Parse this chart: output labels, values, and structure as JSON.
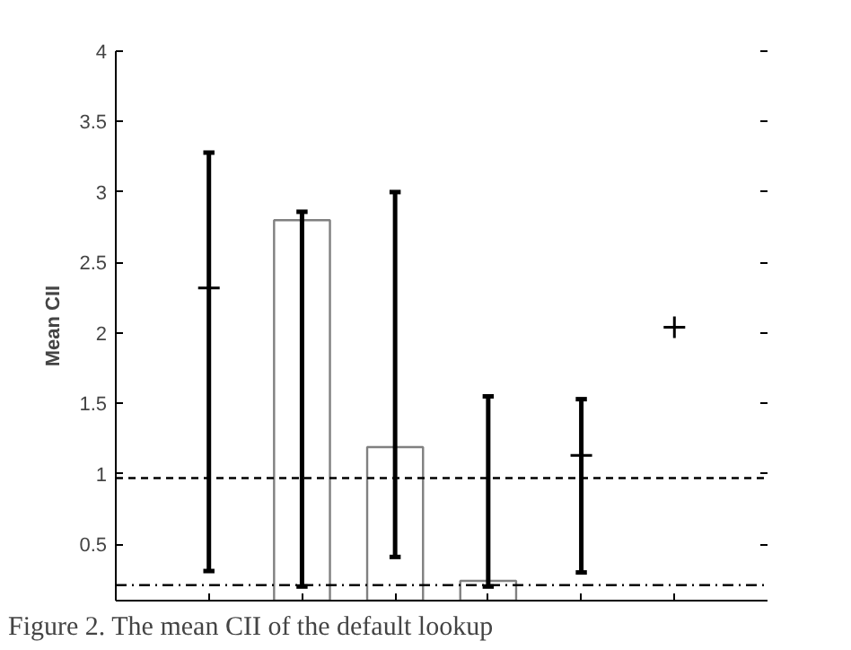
{
  "chart_data": {
    "type": "bar",
    "ylabel": "Mean CII",
    "categories": [
      null,
      null,
      null,
      null,
      null,
      null
    ],
    "ylim": [
      0.1,
      4
    ],
    "yticks": [
      0.5,
      1,
      1.5,
      2,
      2.5,
      3,
      3.5,
      4
    ],
    "series": [
      {
        "color": "#808080",
        "values": [
          null,
          2.8,
          1.19,
          0.24,
          null,
          null
        ],
        "errors": [
          null,
          [
            0.2,
            2.86
          ],
          [
            0.41,
            3.0
          ],
          [
            0.2,
            1.55
          ],
          null,
          null
        ]
      },
      {
        "type": "scatter",
        "marker": "cross",
        "color": "#000000",
        "values": [
          2.32,
          null,
          null,
          null,
          1.13,
          2.04
        ],
        "errors": [
          [
            0.31,
            3.28
          ],
          null,
          null,
          null,
          [
            0.3,
            1.53
          ],
          null
        ]
      }
    ],
    "ref_lines": [
      {
        "axis": "y",
        "value": 0.97,
        "line_style": "dashed",
        "color": "#000000"
      },
      {
        "axis": "y",
        "value": 0.21,
        "line_style": "dashdot",
        "color": "#000000"
      }
    ],
    "grid": false,
    "annotations": [
      "Figure 2. The mean CII of the default lookup"
    ]
  }
}
